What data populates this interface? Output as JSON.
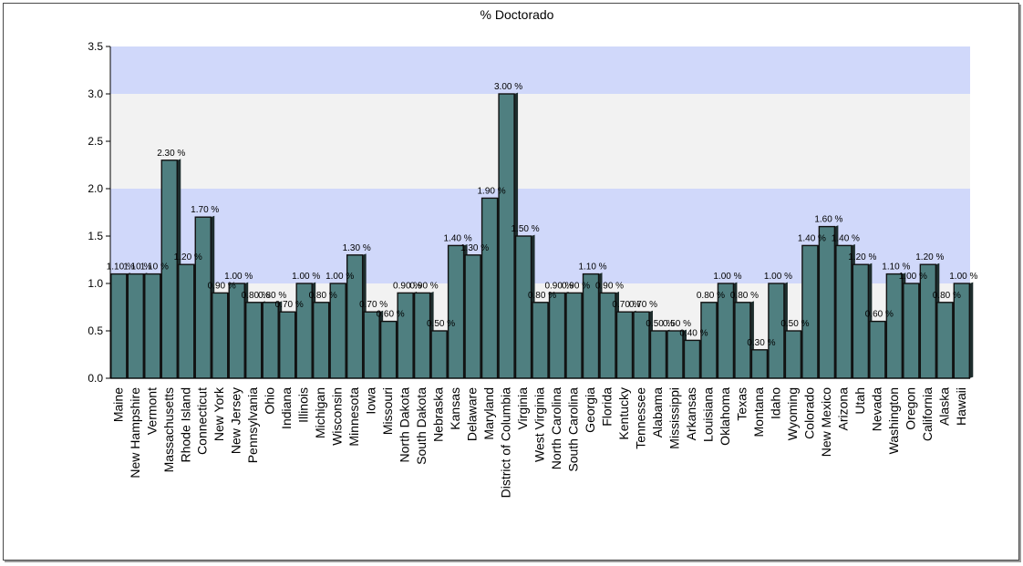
{
  "chart_data": {
    "type": "bar",
    "title": "% Doctorado",
    "xlabel": "",
    "ylabel": "",
    "ylim": [
      0,
      3.5
    ],
    "yticks": [
      "0.0",
      "0.5",
      "1.0",
      "1.5",
      "2.0",
      "2.5",
      "3.0",
      "3.5"
    ],
    "categories": [
      "Maine",
      "New Hampshire",
      "Vermont",
      "Massachusetts",
      "Rhode Island",
      "Connecticut",
      "New York",
      "New Jersey",
      "Pennsylvania",
      "Ohio",
      "Indiana",
      "Illinois",
      "Michigan",
      "Wisconsin",
      "Minnesota",
      "Iowa",
      "Missouri",
      "North Dakota",
      "South Dakota",
      "Nebraska",
      "Kansas",
      "Delaware",
      "Maryland",
      "District of Columbia",
      "Virginia",
      "West Virginia",
      "North Carolina",
      "South Carolina",
      "Georgia",
      "Florida",
      "Kentucky",
      "Tennessee",
      "Alabama",
      "Mississippi",
      "Arkansas",
      "Louisiana",
      "Oklahoma",
      "Texas",
      "Montana",
      "Idaho",
      "Wyoming",
      "Colorado",
      "New Mexico",
      "Arizona",
      "Utah",
      "Nevada",
      "Washington",
      "Oregon",
      "California",
      "Alaska",
      "Hawaii"
    ],
    "values": [
      1.1,
      1.1,
      1.1,
      2.3,
      1.2,
      1.7,
      0.9,
      1.0,
      0.8,
      0.8,
      0.7,
      1.0,
      0.8,
      1.0,
      1.3,
      0.7,
      0.6,
      0.9,
      0.9,
      0.5,
      1.4,
      1.3,
      1.9,
      3.0,
      1.5,
      0.8,
      0.9,
      0.9,
      1.1,
      0.9,
      0.7,
      0.7,
      0.5,
      0.5,
      0.4,
      0.8,
      1.0,
      0.8,
      0.3,
      1.0,
      0.5,
      1.4,
      1.6,
      1.4,
      1.2,
      0.6,
      1.1,
      1.0,
      1.2,
      0.8,
      1.0
    ],
    "data_labels": [
      "1.10 %",
      "1.10 %",
      "1.10 %",
      "2.30 %",
      "1.20 %",
      "1.70 %",
      "0.90 %",
      "1.00 %",
      "0.80 %",
      "0.80 %",
      "0.70 %",
      "1.00 %",
      "0.80 %",
      "1.00 %",
      "1.30 %",
      "0.70 %",
      "0.60 %",
      "0.90 %",
      "0.90 %",
      "0.50 %",
      "1.40 %",
      "1.30 %",
      "1.90 %",
      "3.00 %",
      "1.50 %",
      "0.80 %",
      "0.90 %",
      "0.90 %",
      "1.10 %",
      "0.90 %",
      "0.70 %",
      "0.70 %",
      "0.50 %",
      "0.50 %",
      "0.40 %",
      "0.80 %",
      "1.00 %",
      "0.80 %",
      "0.30 %",
      "1.00 %",
      "0.50 %",
      "1.40 %",
      "1.60 %",
      "1.40 %",
      "1.20 %",
      "0.60 %",
      "1.10 %",
      "1.00 %",
      "1.20 %",
      "0.80 %",
      "1.00 %"
    ],
    "bar_color": "#4f7f80",
    "band_colors": [
      "#f2f2f2",
      "#d0d8fa"
    ],
    "grid": false,
    "legend": "none"
  }
}
